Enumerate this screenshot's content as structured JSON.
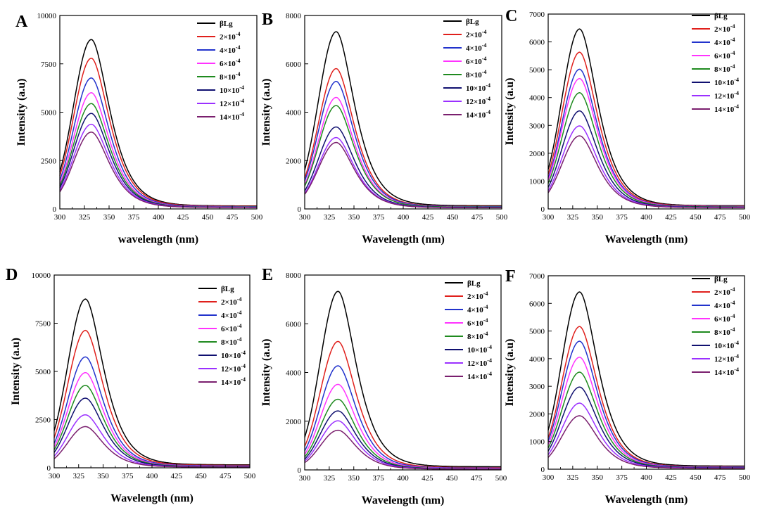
{
  "chart_data": [
    {
      "panel": "A",
      "type": "line",
      "xlabel": "wavelength (nm)",
      "ylabel": "Intensity (a.u)",
      "xlim": [
        300,
        500
      ],
      "ylim": [
        0,
        10000
      ],
      "xticks": [
        300,
        325,
        350,
        375,
        400,
        425,
        450,
        475,
        500
      ],
      "yticks": [
        0,
        2500,
        5000,
        7500,
        10000
      ],
      "peak_x": 332,
      "series": [
        {
          "name": "βLg",
          "peak": 8600
        },
        {
          "name": "2×10",
          "sup": "-4",
          "peak": 7650
        },
        {
          "name": "4×10",
          "sup": "-4",
          "peak": 6650
        },
        {
          "name": "6×10",
          "sup": "-4",
          "peak": 5900
        },
        {
          "name": "8×10",
          "sup": "-4",
          "peak": 5350
        },
        {
          "name": "10×10",
          "sup": "-4",
          "peak": 4850
        },
        {
          "name": "12×10",
          "sup": "-4",
          "peak": 4300
        },
        {
          "name": "14×10",
          "sup": "-4",
          "peak": 3900
        }
      ]
    },
    {
      "panel": "B",
      "type": "line",
      "xlabel": "Wavelength (nm)",
      "ylabel": "Intensity (a.u)",
      "xlim": [
        300,
        500
      ],
      "ylim": [
        0,
        8000
      ],
      "xticks": [
        300,
        325,
        350,
        375,
        400,
        425,
        450,
        475,
        500
      ],
      "yticks": [
        0,
        2000,
        4000,
        6000,
        8000
      ],
      "peak_x": 332,
      "series": [
        {
          "name": "βLg",
          "peak": 7200
        },
        {
          "name": "2×10",
          "sup": "-4",
          "peak": 5700
        },
        {
          "name": "4×10",
          "sup": "-4",
          "peak": 5180
        },
        {
          "name": "6×10",
          "sup": "-4",
          "peak": 4530
        },
        {
          "name": "8×10",
          "sup": "-4",
          "peak": 4200
        },
        {
          "name": "10×10",
          "sup": "-4",
          "peak": 3330
        },
        {
          "name": "12×10",
          "sup": "-4",
          "peak": 2900
        },
        {
          "name": "14×10",
          "sup": "-4",
          "peak": 2700
        }
      ]
    },
    {
      "panel": "C",
      "type": "line",
      "xlabel": "Wavelength (nm)",
      "ylabel": "Intensity (a.u)",
      "xlim": [
        300,
        500
      ],
      "ylim": [
        0,
        7000
      ],
      "xticks": [
        300,
        325,
        350,
        375,
        400,
        425,
        450,
        475,
        500
      ],
      "yticks": [
        0,
        1000,
        2000,
        3000,
        4000,
        5000,
        6000,
        7000
      ],
      "peak_x": 332,
      "series": [
        {
          "name": "βLg",
          "peak": 6350
        },
        {
          "name": "2×10",
          "sup": "-4",
          "peak": 5530
        },
        {
          "name": "4×10",
          "sup": "-4",
          "peak": 4930
        },
        {
          "name": "6×10",
          "sup": "-4",
          "peak": 4600
        },
        {
          "name": "8×10",
          "sup": "-4",
          "peak": 4100
        },
        {
          "name": "10×10",
          "sup": "-4",
          "peak": 3460
        },
        {
          "name": "12×10",
          "sup": "-4",
          "peak": 2930
        },
        {
          "name": "14×10",
          "sup": "-4",
          "peak": 2580
        }
      ]
    },
    {
      "panel": "D",
      "type": "line",
      "xlabel": "Wavelength (nm)",
      "ylabel": "Intensity (a.u)",
      "xlim": [
        300,
        500
      ],
      "ylim": [
        0,
        10000
      ],
      "xticks": [
        300,
        325,
        350,
        375,
        400,
        425,
        450,
        475,
        500
      ],
      "yticks": [
        0,
        2500,
        5000,
        7500,
        10000
      ],
      "peak_x": 332,
      "series": [
        {
          "name": "βLg",
          "peak": 8600
        },
        {
          "name": "2×10",
          "sup": "-4",
          "peak": 7000
        },
        {
          "name": "4×10",
          "sup": "-4",
          "peak": 5650
        },
        {
          "name": "6×10",
          "sup": "-4",
          "peak": 4850
        },
        {
          "name": "8×10",
          "sup": "-4",
          "peak": 4200
        },
        {
          "name": "10×10",
          "sup": "-4",
          "peak": 3550
        },
        {
          "name": "12×10",
          "sup": "-4",
          "peak": 2700
        },
        {
          "name": "14×10",
          "sup": "-4",
          "peak": 2100
        }
      ]
    },
    {
      "panel": "E",
      "type": "line",
      "xlabel": "Wavelength (nm)",
      "ylabel": "Intensity (a.u)",
      "xlim": [
        300,
        500
      ],
      "ylim": [
        0,
        8000
      ],
      "xticks": [
        300,
        325,
        350,
        375,
        400,
        425,
        450,
        475,
        500
      ],
      "yticks": [
        0,
        2000,
        4000,
        6000,
        8000
      ],
      "peak_x": 334,
      "series": [
        {
          "name": "βLg",
          "peak": 7200
        },
        {
          "name": "2×10",
          "sup": "-4",
          "peak": 5180
        },
        {
          "name": "4×10",
          "sup": "-4",
          "peak": 4200
        },
        {
          "name": "6×10",
          "sup": "-4",
          "peak": 3450
        },
        {
          "name": "8×10",
          "sup": "-4",
          "peak": 2850
        },
        {
          "name": "10×10",
          "sup": "-4",
          "peak": 2380
        },
        {
          "name": "12×10",
          "sup": "-4",
          "peak": 1980
        },
        {
          "name": "14×10",
          "sup": "-4",
          "peak": 1600
        }
      ]
    },
    {
      "panel": "F",
      "type": "line",
      "xlabel": "Wavelength (nm)",
      "ylabel": "Intensity (a.u)",
      "xlim": [
        300,
        500
      ],
      "ylim": [
        0,
        7000
      ],
      "xticks": [
        300,
        325,
        350,
        375,
        400,
        425,
        450,
        475,
        500
      ],
      "yticks": [
        0,
        1000,
        2000,
        3000,
        4000,
        5000,
        6000,
        7000
      ],
      "peak_x": 332,
      "series": [
        {
          "name": "βLg",
          "peak": 6300
        },
        {
          "name": "2×10",
          "sup": "-4",
          "peak": 5070
        },
        {
          "name": "4×10",
          "sup": "-4",
          "peak": 4550
        },
        {
          "name": "6×10",
          "sup": "-4",
          "peak": 3980
        },
        {
          "name": "8×10",
          "sup": "-4",
          "peak": 3450
        },
        {
          "name": "10×10",
          "sup": "-4",
          "peak": 2920
        },
        {
          "name": "12×10",
          "sup": "-4",
          "peak": 2350
        },
        {
          "name": "14×10",
          "sup": "-4",
          "peak": 1900
        }
      ]
    }
  ],
  "colors": [
    "#000000",
    "#e0201c",
    "#2233cc",
    "#ff33ff",
    "#1f8a1f",
    "#101070",
    "#9b30ff",
    "#7a1f6e"
  ]
}
